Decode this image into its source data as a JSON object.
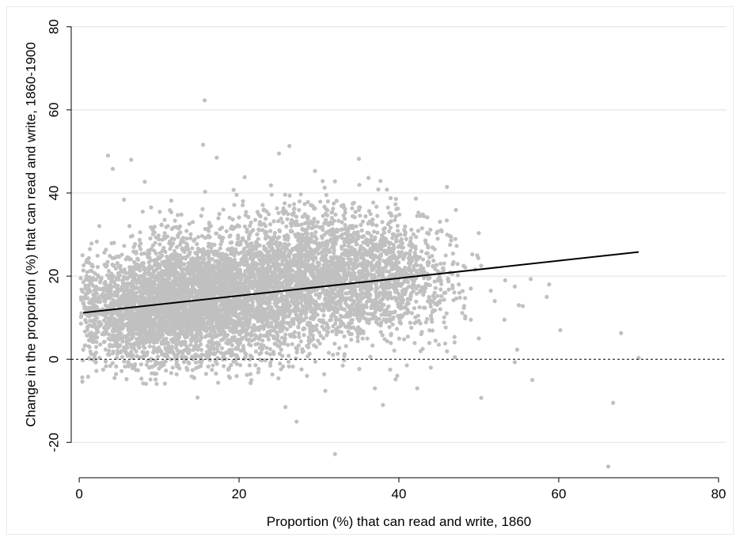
{
  "chart_data": {
    "type": "scatter",
    "title": "",
    "xlabel": "Proportion (%) that can read and write, 1860",
    "ylabel": "Change in the proportion (%) that can read and write, 1860-1900",
    "xlim": [
      -1,
      81
    ],
    "ylim": [
      -28.5,
      83
    ],
    "x_ticks": [
      0,
      20,
      40,
      60,
      80
    ],
    "y_ticks": [
      -20,
      0,
      20,
      40,
      60,
      80
    ],
    "x_tick_labels": [
      "0",
      "20",
      "40",
      "60",
      "80"
    ],
    "y_tick_labels": [
      "-20",
      "0",
      "20",
      "40",
      "60",
      "80"
    ],
    "grid": "horizontal",
    "point_color": "#c0c0c0",
    "fit_line_color": "#000000",
    "gridline_color": "#dde9ef",
    "reference_line": {
      "y": 0,
      "style": "dashed"
    },
    "fit_line": {
      "x": [
        0.5,
        70
      ],
      "y": [
        11.2,
        25.8
      ]
    },
    "clusters_note_points_shown_by_density": true,
    "points": [
      [
        15.7,
        62.3
      ],
      [
        15.5,
        51.6
      ],
      [
        26.3,
        51.3
      ],
      [
        3.6,
        49.0
      ],
      [
        25.0,
        49.5
      ],
      [
        35.0,
        48.2
      ],
      [
        17.2,
        48.5
      ],
      [
        6.5,
        48.0
      ],
      [
        4.2,
        45.8
      ],
      [
        29.5,
        45.3
      ],
      [
        8.2,
        42.7
      ],
      [
        20.7,
        43.8
      ],
      [
        38.5,
        40.8
      ],
      [
        32.0,
        42.8
      ],
      [
        50.3,
        22.5
      ],
      [
        49.8,
        25.0
      ],
      [
        48.3,
        22.1
      ],
      [
        49.0,
        17.0
      ],
      [
        47.5,
        18.0
      ],
      [
        51.5,
        16.5
      ],
      [
        52.0,
        14.0
      ],
      [
        53.3,
        19.0
      ],
      [
        54.5,
        17.5
      ],
      [
        56.5,
        19.3
      ],
      [
        55.0,
        13.0
      ],
      [
        55.5,
        12.8
      ],
      [
        58.5,
        15.0
      ],
      [
        58.8,
        18.0
      ],
      [
        53.2,
        9.5
      ],
      [
        54.8,
        2.3
      ],
      [
        54.5,
        -0.7
      ],
      [
        60.2,
        7.0
      ],
      [
        67.8,
        6.3
      ],
      [
        70.0,
        0.3
      ],
      [
        50.3,
        -9.3
      ],
      [
        56.7,
        -5.0
      ],
      [
        66.8,
        -10.5
      ],
      [
        66.2,
        -25.8
      ],
      [
        32.0,
        -22.8
      ],
      [
        38.0,
        -11.0
      ],
      [
        37.0,
        -7.0
      ],
      [
        42.3,
        -7.0
      ],
      [
        30.8,
        -7.6
      ],
      [
        27.2,
        -15.0
      ],
      [
        25.8,
        -11.5
      ],
      [
        14.8,
        -9.2
      ],
      [
        3.0,
        -2.5
      ],
      [
        8.0,
        -5.8
      ],
      [
        0.2,
        19.5
      ],
      [
        1.0,
        7.0
      ],
      [
        2.2,
        28.3
      ],
      [
        0.5,
        2.3
      ],
      [
        1.5,
        1.3
      ],
      [
        45.0,
        3.5
      ],
      [
        49.0,
        9.5
      ],
      [
        50.0,
        5.0
      ],
      [
        47.0,
        0.5
      ],
      [
        44.0,
        -2.0
      ],
      [
        28.5,
        -4.0
      ]
    ],
    "clusters": [
      {
        "cx": 15,
        "cy": 14,
        "sx": 6.5,
        "sy": 7.5,
        "n": 3200
      },
      {
        "cx": 29,
        "cy": 21,
        "sx": 7,
        "sy": 8,
        "n": 2000
      },
      {
        "cx": 38,
        "cy": 18,
        "sx": 5,
        "sy": 7,
        "n": 700
      },
      {
        "cx": 8,
        "cy": 11,
        "sx": 4,
        "sy": 6,
        "n": 900
      }
    ]
  }
}
